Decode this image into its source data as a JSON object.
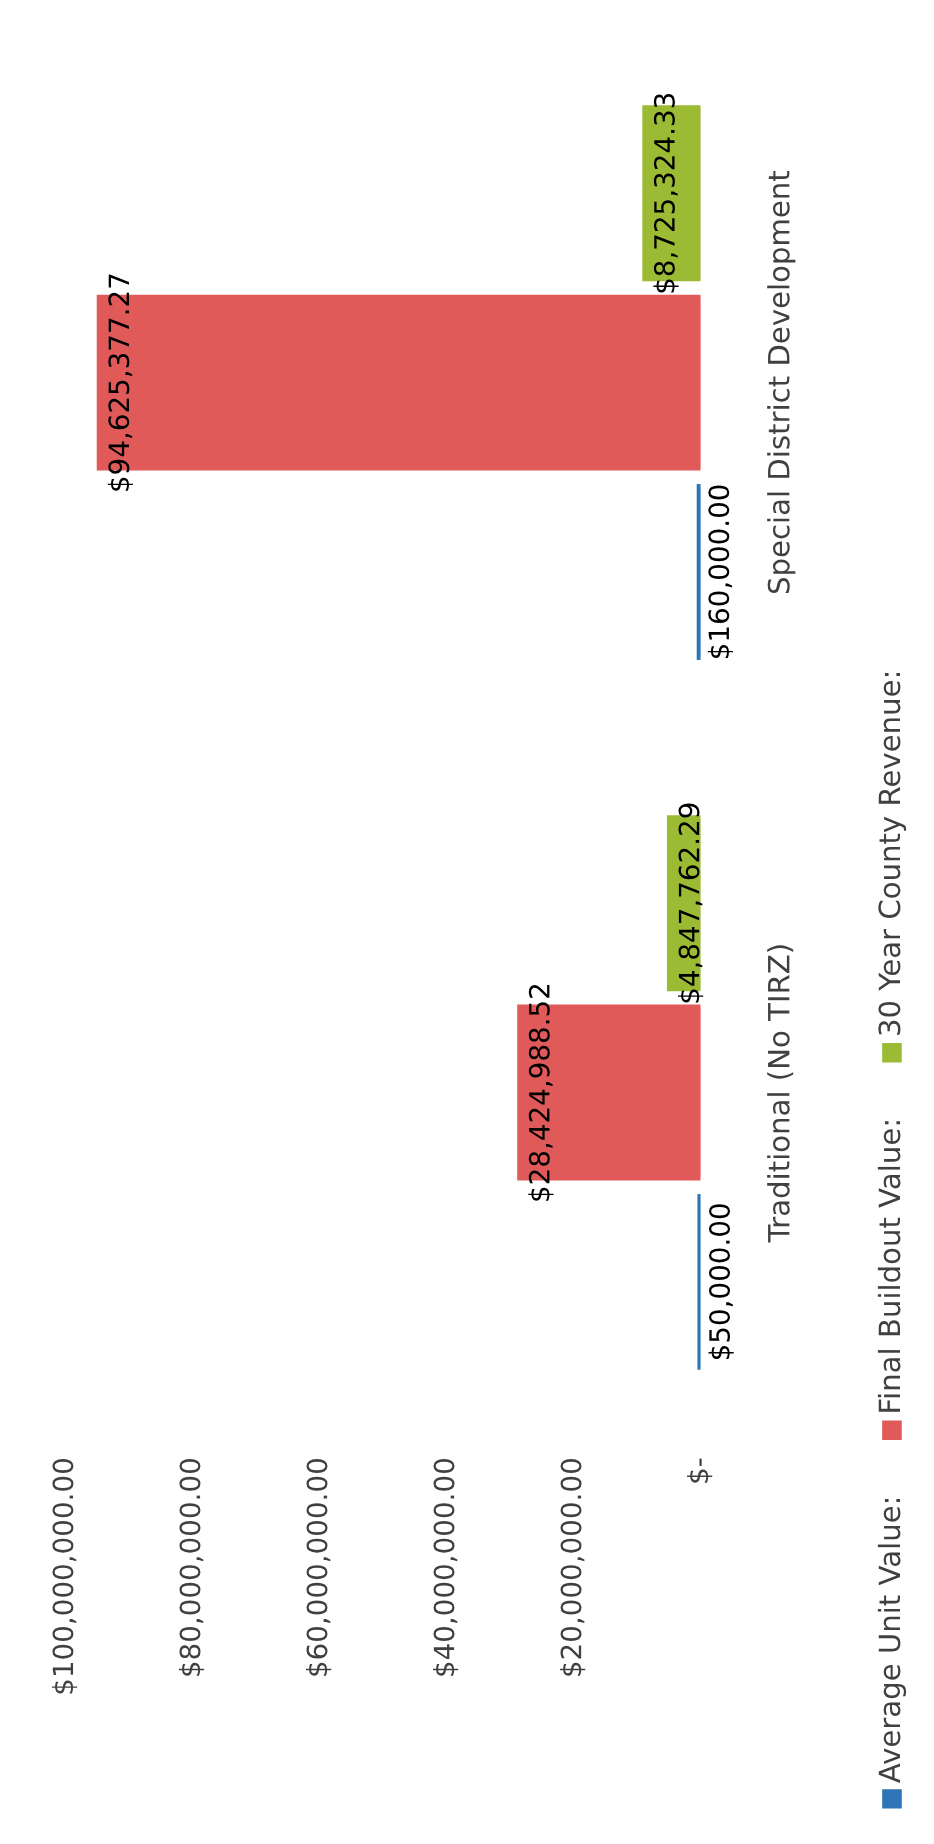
{
  "chart_data": {
    "type": "bar",
    "orientation": "horizontal",
    "categories": [
      "Special District Development",
      "Traditional (No TIRZ)"
    ],
    "series": [
      {
        "name": "Average Unit Value:",
        "color": "#2e75b6",
        "values": [
          160000.0,
          50000.0
        ]
      },
      {
        "name": "Final Buildout Value:",
        "color": "#e05a5a",
        "values": [
          94625377.27,
          28424988.52
        ]
      },
      {
        "name": "30 Year County Revenue:",
        "color": "#9bbb35",
        "values": [
          8725324.33,
          4847762.29
        ]
      }
    ],
    "value_labels": [
      [
        "$160,000.00",
        "$50,000.00"
      ],
      [
        "$94,625,377.27",
        "$28,424,988.52"
      ],
      [
        "$8,725,324.33",
        "$4,847,762.29"
      ]
    ],
    "xlim": [
      100000000,
      0
    ],
    "xticks": [
      {
        "value": 100000000,
        "label": "$100,000,000.00"
      },
      {
        "value": 80000000,
        "label": "$80,000,000.00"
      },
      {
        "value": 60000000,
        "label": "$60,000,000.00"
      },
      {
        "value": 40000000,
        "label": "$40,000,000.00"
      },
      {
        "value": 20000000,
        "label": "$20,000,000.00"
      },
      {
        "value": 0,
        "label": "$-"
      }
    ],
    "grid": false,
    "legend": "right"
  }
}
